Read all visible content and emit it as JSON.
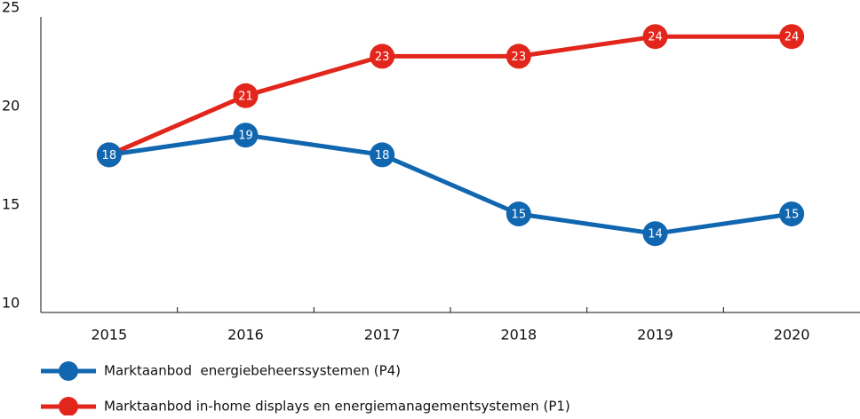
{
  "chart_data": {
    "type": "line",
    "categories": [
      "2015",
      "2016",
      "2017",
      "2018",
      "2019",
      "2020"
    ],
    "series": [
      {
        "name": "Marktaanbod in-home displays en energiemanagementsystemen (P1)",
        "color": "#e2261c",
        "values": [
          18,
          21,
          23,
          23,
          24,
          24
        ]
      },
      {
        "name": "Marktaanbod  energiebeheerssystemen (P4)",
        "color": "#1166b0",
        "values": [
          18,
          19,
          18,
          15,
          14,
          15
        ]
      }
    ],
    "ylim": [
      10,
      25
    ],
    "yticks": [
      10,
      15,
      20,
      25
    ],
    "legend": "bottom"
  }
}
